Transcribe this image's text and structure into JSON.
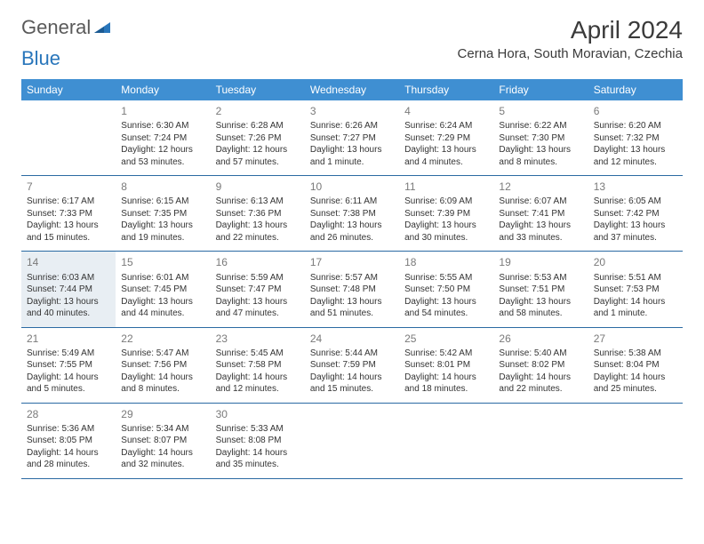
{
  "brand": {
    "part1": "General",
    "part2": "Blue"
  },
  "title": "April 2024",
  "location": "Cerna Hora, South Moravian, Czechia",
  "colors": {
    "header_bg": "#3f8fd2",
    "header_text": "#ffffff",
    "row_border": "#2b6aa3",
    "daynum": "#7a7a7a",
    "body_text": "#333333",
    "shaded_bg": "#e8eef3",
    "logo_gray": "#5a5a5a",
    "logo_blue": "#2976bb"
  },
  "weekdays": [
    "Sunday",
    "Monday",
    "Tuesday",
    "Wednesday",
    "Thursday",
    "Friday",
    "Saturday"
  ],
  "rows": [
    [
      {
        "day": "",
        "sunrise": "",
        "sunset": "",
        "daylight1": "",
        "daylight2": ""
      },
      {
        "day": "1",
        "sunrise": "Sunrise: 6:30 AM",
        "sunset": "Sunset: 7:24 PM",
        "daylight1": "Daylight: 12 hours",
        "daylight2": "and 53 minutes."
      },
      {
        "day": "2",
        "sunrise": "Sunrise: 6:28 AM",
        "sunset": "Sunset: 7:26 PM",
        "daylight1": "Daylight: 12 hours",
        "daylight2": "and 57 minutes."
      },
      {
        "day": "3",
        "sunrise": "Sunrise: 6:26 AM",
        "sunset": "Sunset: 7:27 PM",
        "daylight1": "Daylight: 13 hours",
        "daylight2": "and 1 minute."
      },
      {
        "day": "4",
        "sunrise": "Sunrise: 6:24 AM",
        "sunset": "Sunset: 7:29 PM",
        "daylight1": "Daylight: 13 hours",
        "daylight2": "and 4 minutes."
      },
      {
        "day": "5",
        "sunrise": "Sunrise: 6:22 AM",
        "sunset": "Sunset: 7:30 PM",
        "daylight1": "Daylight: 13 hours",
        "daylight2": "and 8 minutes."
      },
      {
        "day": "6",
        "sunrise": "Sunrise: 6:20 AM",
        "sunset": "Sunset: 7:32 PM",
        "daylight1": "Daylight: 13 hours",
        "daylight2": "and 12 minutes."
      }
    ],
    [
      {
        "day": "7",
        "sunrise": "Sunrise: 6:17 AM",
        "sunset": "Sunset: 7:33 PM",
        "daylight1": "Daylight: 13 hours",
        "daylight2": "and 15 minutes."
      },
      {
        "day": "8",
        "sunrise": "Sunrise: 6:15 AM",
        "sunset": "Sunset: 7:35 PM",
        "daylight1": "Daylight: 13 hours",
        "daylight2": "and 19 minutes."
      },
      {
        "day": "9",
        "sunrise": "Sunrise: 6:13 AM",
        "sunset": "Sunset: 7:36 PM",
        "daylight1": "Daylight: 13 hours",
        "daylight2": "and 22 minutes."
      },
      {
        "day": "10",
        "sunrise": "Sunrise: 6:11 AM",
        "sunset": "Sunset: 7:38 PM",
        "daylight1": "Daylight: 13 hours",
        "daylight2": "and 26 minutes."
      },
      {
        "day": "11",
        "sunrise": "Sunrise: 6:09 AM",
        "sunset": "Sunset: 7:39 PM",
        "daylight1": "Daylight: 13 hours",
        "daylight2": "and 30 minutes."
      },
      {
        "day": "12",
        "sunrise": "Sunrise: 6:07 AM",
        "sunset": "Sunset: 7:41 PM",
        "daylight1": "Daylight: 13 hours",
        "daylight2": "and 33 minutes."
      },
      {
        "day": "13",
        "sunrise": "Sunrise: 6:05 AM",
        "sunset": "Sunset: 7:42 PM",
        "daylight1": "Daylight: 13 hours",
        "daylight2": "and 37 minutes."
      }
    ],
    [
      {
        "day": "14",
        "shaded": true,
        "sunrise": "Sunrise: 6:03 AM",
        "sunset": "Sunset: 7:44 PM",
        "daylight1": "Daylight: 13 hours",
        "daylight2": "and 40 minutes."
      },
      {
        "day": "15",
        "sunrise": "Sunrise: 6:01 AM",
        "sunset": "Sunset: 7:45 PM",
        "daylight1": "Daylight: 13 hours",
        "daylight2": "and 44 minutes."
      },
      {
        "day": "16",
        "sunrise": "Sunrise: 5:59 AM",
        "sunset": "Sunset: 7:47 PM",
        "daylight1": "Daylight: 13 hours",
        "daylight2": "and 47 minutes."
      },
      {
        "day": "17",
        "sunrise": "Sunrise: 5:57 AM",
        "sunset": "Sunset: 7:48 PM",
        "daylight1": "Daylight: 13 hours",
        "daylight2": "and 51 minutes."
      },
      {
        "day": "18",
        "sunrise": "Sunrise: 5:55 AM",
        "sunset": "Sunset: 7:50 PM",
        "daylight1": "Daylight: 13 hours",
        "daylight2": "and 54 minutes."
      },
      {
        "day": "19",
        "sunrise": "Sunrise: 5:53 AM",
        "sunset": "Sunset: 7:51 PM",
        "daylight1": "Daylight: 13 hours",
        "daylight2": "and 58 minutes."
      },
      {
        "day": "20",
        "sunrise": "Sunrise: 5:51 AM",
        "sunset": "Sunset: 7:53 PM",
        "daylight1": "Daylight: 14 hours",
        "daylight2": "and 1 minute."
      }
    ],
    [
      {
        "day": "21",
        "sunrise": "Sunrise: 5:49 AM",
        "sunset": "Sunset: 7:55 PM",
        "daylight1": "Daylight: 14 hours",
        "daylight2": "and 5 minutes."
      },
      {
        "day": "22",
        "sunrise": "Sunrise: 5:47 AM",
        "sunset": "Sunset: 7:56 PM",
        "daylight1": "Daylight: 14 hours",
        "daylight2": "and 8 minutes."
      },
      {
        "day": "23",
        "sunrise": "Sunrise: 5:45 AM",
        "sunset": "Sunset: 7:58 PM",
        "daylight1": "Daylight: 14 hours",
        "daylight2": "and 12 minutes."
      },
      {
        "day": "24",
        "sunrise": "Sunrise: 5:44 AM",
        "sunset": "Sunset: 7:59 PM",
        "daylight1": "Daylight: 14 hours",
        "daylight2": "and 15 minutes."
      },
      {
        "day": "25",
        "sunrise": "Sunrise: 5:42 AM",
        "sunset": "Sunset: 8:01 PM",
        "daylight1": "Daylight: 14 hours",
        "daylight2": "and 18 minutes."
      },
      {
        "day": "26",
        "sunrise": "Sunrise: 5:40 AM",
        "sunset": "Sunset: 8:02 PM",
        "daylight1": "Daylight: 14 hours",
        "daylight2": "and 22 minutes."
      },
      {
        "day": "27",
        "sunrise": "Sunrise: 5:38 AM",
        "sunset": "Sunset: 8:04 PM",
        "daylight1": "Daylight: 14 hours",
        "daylight2": "and 25 minutes."
      }
    ],
    [
      {
        "day": "28",
        "sunrise": "Sunrise: 5:36 AM",
        "sunset": "Sunset: 8:05 PM",
        "daylight1": "Daylight: 14 hours",
        "daylight2": "and 28 minutes."
      },
      {
        "day": "29",
        "sunrise": "Sunrise: 5:34 AM",
        "sunset": "Sunset: 8:07 PM",
        "daylight1": "Daylight: 14 hours",
        "daylight2": "and 32 minutes."
      },
      {
        "day": "30",
        "sunrise": "Sunrise: 5:33 AM",
        "sunset": "Sunset: 8:08 PM",
        "daylight1": "Daylight: 14 hours",
        "daylight2": "and 35 minutes."
      },
      {
        "day": "",
        "sunrise": "",
        "sunset": "",
        "daylight1": "",
        "daylight2": ""
      },
      {
        "day": "",
        "sunrise": "",
        "sunset": "",
        "daylight1": "",
        "daylight2": ""
      },
      {
        "day": "",
        "sunrise": "",
        "sunset": "",
        "daylight1": "",
        "daylight2": ""
      },
      {
        "day": "",
        "sunrise": "",
        "sunset": "",
        "daylight1": "",
        "daylight2": ""
      }
    ]
  ]
}
